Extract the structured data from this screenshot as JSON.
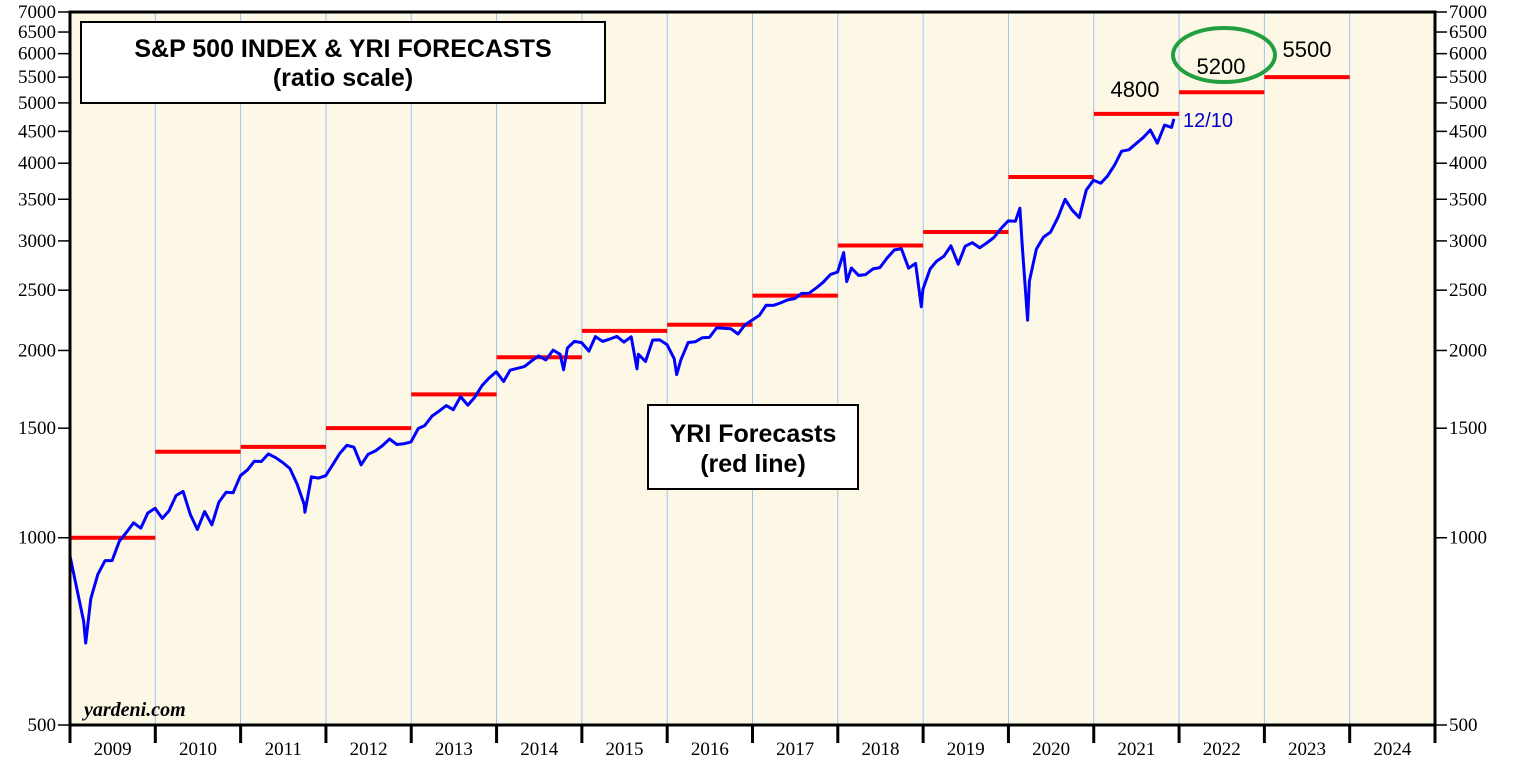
{
  "chart_data": {
    "type": "line",
    "title": "S&P 500 INDEX & YRI FORECASTS",
    "subtitle": "(ratio scale)",
    "y_scale": "log",
    "ylim": [
      500,
      7000
    ],
    "xlim": [
      "2009-01-01",
      "2025-01-01"
    ],
    "y_ticks": [
      500,
      1000,
      1500,
      2000,
      2500,
      3000,
      3500,
      4000,
      4500,
      5000,
      5500,
      6000,
      6500,
      7000
    ],
    "x_tick_labels": [
      "2009",
      "2010",
      "2011",
      "2012",
      "2013",
      "2014",
      "2015",
      "2016",
      "2017",
      "2018",
      "2019",
      "2020",
      "2021",
      "2022",
      "2023",
      "2024"
    ],
    "grid": "vertical at year boundaries",
    "background_color": "#fdf8e6",
    "series": [
      {
        "name": "S&P 500",
        "color": "#0000ff",
        "points": [
          [
            "2009-01-02",
            931
          ],
          [
            "2009-01-31",
            826
          ],
          [
            "2009-02-28",
            735
          ],
          [
            "2009-03-09",
            677
          ],
          [
            "2009-03-31",
            798
          ],
          [
            "2009-04-30",
            873
          ],
          [
            "2009-05-31",
            919
          ],
          [
            "2009-06-30",
            919
          ],
          [
            "2009-07-31",
            987
          ],
          [
            "2009-08-31",
            1021
          ],
          [
            "2009-09-30",
            1057
          ],
          [
            "2009-10-31",
            1036
          ],
          [
            "2009-11-30",
            1096
          ],
          [
            "2009-12-31",
            1115
          ],
          [
            "2010-01-31",
            1074
          ],
          [
            "2010-02-28",
            1104
          ],
          [
            "2010-03-31",
            1169
          ],
          [
            "2010-04-30",
            1187
          ],
          [
            "2010-05-31",
            1089
          ],
          [
            "2010-06-30",
            1031
          ],
          [
            "2010-07-31",
            1102
          ],
          [
            "2010-08-31",
            1049
          ],
          [
            "2010-09-30",
            1141
          ],
          [
            "2010-10-31",
            1183
          ],
          [
            "2010-11-30",
            1181
          ],
          [
            "2010-12-31",
            1258
          ],
          [
            "2011-01-31",
            1286
          ],
          [
            "2011-02-28",
            1327
          ],
          [
            "2011-03-31",
            1326
          ],
          [
            "2011-04-30",
            1364
          ],
          [
            "2011-05-31",
            1345
          ],
          [
            "2011-06-30",
            1321
          ],
          [
            "2011-07-31",
            1292
          ],
          [
            "2011-08-31",
            1219
          ],
          [
            "2011-09-30",
            1131
          ],
          [
            "2011-10-03",
            1099
          ],
          [
            "2011-10-31",
            1253
          ],
          [
            "2011-11-30",
            1247
          ],
          [
            "2011-12-31",
            1258
          ],
          [
            "2012-01-31",
            1312
          ],
          [
            "2012-02-29",
            1366
          ],
          [
            "2012-03-31",
            1408
          ],
          [
            "2012-04-30",
            1398
          ],
          [
            "2012-05-31",
            1310
          ],
          [
            "2012-06-30",
            1362
          ],
          [
            "2012-07-31",
            1379
          ],
          [
            "2012-08-31",
            1407
          ],
          [
            "2012-09-30",
            1441
          ],
          [
            "2012-10-31",
            1412
          ],
          [
            "2012-11-30",
            1416
          ],
          [
            "2012-12-31",
            1426
          ],
          [
            "2013-01-31",
            1498
          ],
          [
            "2013-02-28",
            1515
          ],
          [
            "2013-03-31",
            1569
          ],
          [
            "2013-04-30",
            1598
          ],
          [
            "2013-05-31",
            1631
          ],
          [
            "2013-06-30",
            1606
          ],
          [
            "2013-07-31",
            1686
          ],
          [
            "2013-08-31",
            1633
          ],
          [
            "2013-09-30",
            1682
          ],
          [
            "2013-10-31",
            1757
          ],
          [
            "2013-11-30",
            1806
          ],
          [
            "2013-12-31",
            1848
          ],
          [
            "2014-01-31",
            1783
          ],
          [
            "2014-02-28",
            1859
          ],
          [
            "2014-03-31",
            1872
          ],
          [
            "2014-04-30",
            1884
          ],
          [
            "2014-05-31",
            1924
          ],
          [
            "2014-06-30",
            1960
          ],
          [
            "2014-07-31",
            1931
          ],
          [
            "2014-08-31",
            2003
          ],
          [
            "2014-09-30",
            1972
          ],
          [
            "2014-10-15",
            1862
          ],
          [
            "2014-10-31",
            2018
          ],
          [
            "2014-11-30",
            2068
          ],
          [
            "2014-12-31",
            2059
          ],
          [
            "2015-01-31",
            1995
          ],
          [
            "2015-02-28",
            2105
          ],
          [
            "2015-03-31",
            2068
          ],
          [
            "2015-04-30",
            2086
          ],
          [
            "2015-05-31",
            2107
          ],
          [
            "2015-06-30",
            2063
          ],
          [
            "2015-07-31",
            2104
          ],
          [
            "2015-08-25",
            1868
          ],
          [
            "2015-08-31",
            1972
          ],
          [
            "2015-09-30",
            1920
          ],
          [
            "2015-10-31",
            2079
          ],
          [
            "2015-11-30",
            2080
          ],
          [
            "2015-12-31",
            2044
          ],
          [
            "2016-01-31",
            1940
          ],
          [
            "2016-02-11",
            1829
          ],
          [
            "2016-02-29",
            1932
          ],
          [
            "2016-03-31",
            2060
          ],
          [
            "2016-04-30",
            2065
          ],
          [
            "2016-05-31",
            2097
          ],
          [
            "2016-06-30",
            2099
          ],
          [
            "2016-07-31",
            2174
          ],
          [
            "2016-08-31",
            2171
          ],
          [
            "2016-09-30",
            2168
          ],
          [
            "2016-10-31",
            2126
          ],
          [
            "2016-11-30",
            2199
          ],
          [
            "2016-12-31",
            2239
          ],
          [
            "2017-01-31",
            2279
          ],
          [
            "2017-02-28",
            2364
          ],
          [
            "2017-03-31",
            2363
          ],
          [
            "2017-04-30",
            2384
          ],
          [
            "2017-05-31",
            2412
          ],
          [
            "2017-06-30",
            2423
          ],
          [
            "2017-07-31",
            2470
          ],
          [
            "2017-08-31",
            2472
          ],
          [
            "2017-09-30",
            2519
          ],
          [
            "2017-10-31",
            2575
          ],
          [
            "2017-11-30",
            2648
          ],
          [
            "2017-12-31",
            2674
          ],
          [
            "2018-01-26",
            2873
          ],
          [
            "2018-02-08",
            2581
          ],
          [
            "2018-02-28",
            2714
          ],
          [
            "2018-03-31",
            2641
          ],
          [
            "2018-04-30",
            2648
          ],
          [
            "2018-05-31",
            2705
          ],
          [
            "2018-06-30",
            2718
          ],
          [
            "2018-07-31",
            2816
          ],
          [
            "2018-08-31",
            2902
          ],
          [
            "2018-09-30",
            2914
          ],
          [
            "2018-10-31",
            2712
          ],
          [
            "2018-11-30",
            2760
          ],
          [
            "2018-12-24",
            2351
          ],
          [
            "2018-12-31",
            2507
          ],
          [
            "2019-01-31",
            2704
          ],
          [
            "2019-02-28",
            2784
          ],
          [
            "2019-03-31",
            2834
          ],
          [
            "2019-04-30",
            2946
          ],
          [
            "2019-05-31",
            2752
          ],
          [
            "2019-06-30",
            2942
          ],
          [
            "2019-07-31",
            2980
          ],
          [
            "2019-08-31",
            2926
          ],
          [
            "2019-09-30",
            2977
          ],
          [
            "2019-10-31",
            3038
          ],
          [
            "2019-11-30",
            3141
          ],
          [
            "2019-12-31",
            3231
          ],
          [
            "2020-01-31",
            3226
          ],
          [
            "2020-02-19",
            3386
          ],
          [
            "2020-02-29",
            2954
          ],
          [
            "2020-03-23",
            2237
          ],
          [
            "2020-03-31",
            2585
          ],
          [
            "2020-04-30",
            2912
          ],
          [
            "2020-05-31",
            3044
          ],
          [
            "2020-06-30",
            3100
          ],
          [
            "2020-07-31",
            3271
          ],
          [
            "2020-08-31",
            3500
          ],
          [
            "2020-09-30",
            3363
          ],
          [
            "2020-10-31",
            3270
          ],
          [
            "2020-11-30",
            3622
          ],
          [
            "2020-12-31",
            3756
          ],
          [
            "2021-01-31",
            3714
          ],
          [
            "2021-02-28",
            3811
          ],
          [
            "2021-03-31",
            3973
          ],
          [
            "2021-04-30",
            4181
          ],
          [
            "2021-05-31",
            4204
          ],
          [
            "2021-06-30",
            4298
          ],
          [
            "2021-07-31",
            4395
          ],
          [
            "2021-08-31",
            4523
          ],
          [
            "2021-09-30",
            4308
          ],
          [
            "2021-10-31",
            4605
          ],
          [
            "2021-11-30",
            4567
          ],
          [
            "2021-12-10",
            4712
          ]
        ]
      },
      {
        "name": "YRI Forecasts",
        "color": "#ff0000",
        "type": "step",
        "values": [
          {
            "year": "2009",
            "value": 1000
          },
          {
            "year": "2010",
            "value": 1375
          },
          {
            "year": "2011",
            "value": 1400
          },
          {
            "year": "2012",
            "value": 1500
          },
          {
            "year": "2013",
            "value": 1700
          },
          {
            "year": "2014",
            "value": 1950
          },
          {
            "year": "2015",
            "value": 2150
          },
          {
            "year": "2016",
            "value": 2200
          },
          {
            "year": "2017",
            "value": 2450
          },
          {
            "year": "2018",
            "value": 2950
          },
          {
            "year": "2019",
            "value": 3100
          },
          {
            "year": "2020",
            "value": 3800
          },
          {
            "year": "2021",
            "value": 4800
          },
          {
            "year": "2022",
            "value": 5200
          },
          {
            "year": "2023",
            "value": 5500
          }
        ]
      }
    ],
    "annotations": {
      "legend_box_title": "YRI Forecasts",
      "legend_box_subtitle": "(red line)",
      "label_2021": "4800",
      "label_2022": "5200",
      "label_2023": "5500",
      "last_date_label": "12/10",
      "highlight_color": "#22a040",
      "source": "yardeni.com"
    }
  }
}
